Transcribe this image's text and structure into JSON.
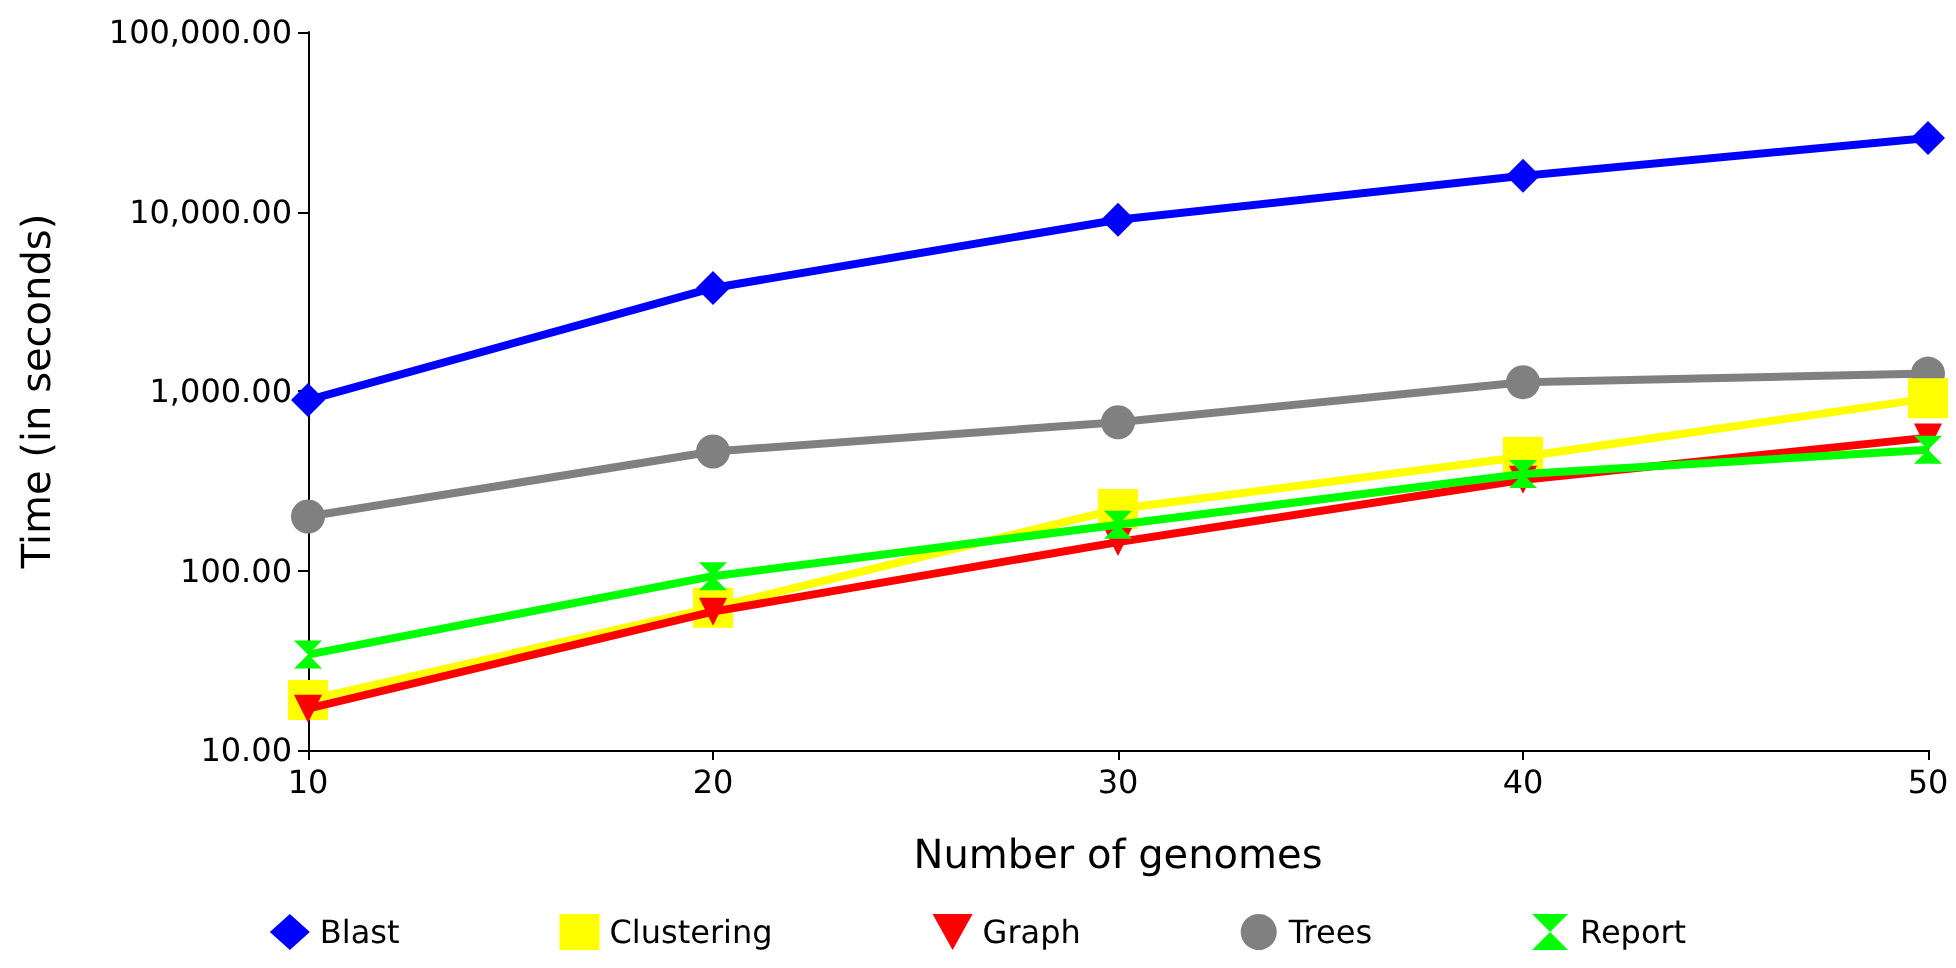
{
  "chart_data": {
    "type": "line",
    "xlabel": "Number of genomes",
    "ylabel": "Time (in seconds)",
    "x": [
      10,
      20,
      30,
      40,
      50
    ],
    "xlim": [
      10,
      50
    ],
    "xticks": [
      10,
      20,
      30,
      40,
      50
    ],
    "ylim": [
      10,
      100000
    ],
    "log": "y",
    "yticks": [
      {
        "value": 10,
        "label": "10.00"
      },
      {
        "value": 100,
        "label": "100.00"
      },
      {
        "value": 1000,
        "label": "1,000.00"
      },
      {
        "value": 10000,
        "label": "10,000.00"
      },
      {
        "value": 100000,
        "label": "100,000.00"
      }
    ],
    "grid": false,
    "legend": "bottom",
    "line_style": "solid",
    "series": [
      {
        "name": "Blast",
        "color": "#0000ff",
        "marker": "diamond",
        "values": [
          890,
          3750,
          9000,
          15800,
          25700
        ]
      },
      {
        "name": "Clustering",
        "color": "#ffff00",
        "marker": "square",
        "values": [
          19,
          62,
          220,
          430,
          910
        ]
      },
      {
        "name": "Graph",
        "color": "#ff0000",
        "marker": "triangle",
        "values": [
          17,
          59,
          144,
          320,
          550
        ]
      },
      {
        "name": "Trees",
        "color": "#808080",
        "marker": "circle",
        "values": [
          200,
          460,
          670,
          1120,
          1250
        ]
      },
      {
        "name": "Report",
        "color": "#00ff00",
        "marker": "cross",
        "values": [
          34,
          93,
          180,
          345,
          470
        ]
      }
    ]
  }
}
